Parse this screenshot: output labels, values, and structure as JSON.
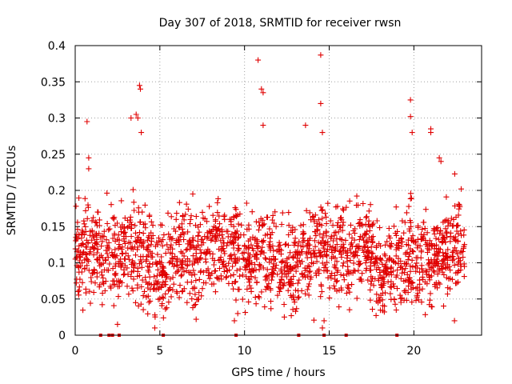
{
  "chart_data": {
    "type": "scatter",
    "title": "Day 307 of 2018, SRMTID for receiver rwsn",
    "xlabel": "GPS time / hours",
    "ylabel": "SRMTID / TECUs",
    "xlim": [
      0,
      24
    ],
    "ylim": [
      0,
      0.4
    ],
    "x_ticks": [
      0,
      5,
      10,
      15,
      20
    ],
    "y_ticks": [
      0,
      0.05,
      0.1,
      0.15,
      0.2,
      0.25,
      0.3,
      0.35,
      0.4
    ],
    "y_tick_labels": [
      "0",
      "0.05",
      "0.1",
      "0.15",
      "0.2",
      "0.25",
      "0.3",
      "0.35",
      "0.4"
    ],
    "grid": true,
    "marker": "+",
    "marker_color": "#e00000",
    "series": [
      {
        "name": "SRMTID",
        "notable_points": [
          [
            0.7,
            0.295
          ],
          [
            0.8,
            0.245
          ],
          [
            0.8,
            0.23
          ],
          [
            3.3,
            0.3
          ],
          [
            3.6,
            0.305
          ],
          [
            3.7,
            0.3
          ],
          [
            3.8,
            0.345
          ],
          [
            3.85,
            0.34
          ],
          [
            3.9,
            0.28
          ],
          [
            10.8,
            0.38
          ],
          [
            11.0,
            0.34
          ],
          [
            11.1,
            0.335
          ],
          [
            11.1,
            0.29
          ],
          [
            13.6,
            0.29
          ],
          [
            14.5,
            0.387
          ],
          [
            14.5,
            0.32
          ],
          [
            14.6,
            0.28
          ],
          [
            19.8,
            0.325
          ],
          [
            19.8,
            0.302
          ],
          [
            19.9,
            0.28
          ],
          [
            21.0,
            0.285
          ],
          [
            21.0,
            0.28
          ],
          [
            21.5,
            0.245
          ],
          [
            21.6,
            0.24
          ],
          [
            4.7,
            0.01
          ],
          [
            9.4,
            0.02
          ],
          [
            9.6,
            0.03
          ],
          [
            14.6,
            0.01
          ],
          [
            14.7,
            0.02
          ],
          [
            2.5,
            0.015
          ],
          [
            22.4,
            0.02
          ]
        ],
        "baseline_points_x": [
          1.5,
          2.0,
          2.2,
          2.6,
          5.2,
          9.5,
          13.2,
          14.7,
          16.0,
          19.0
        ],
        "baseline_points_y": 0,
        "dense_envelope": {
          "x_range": [
            0,
            23
          ],
          "central_y": 0.11,
          "lower_y": 0.04,
          "upper_y": 0.2
        }
      }
    ]
  }
}
